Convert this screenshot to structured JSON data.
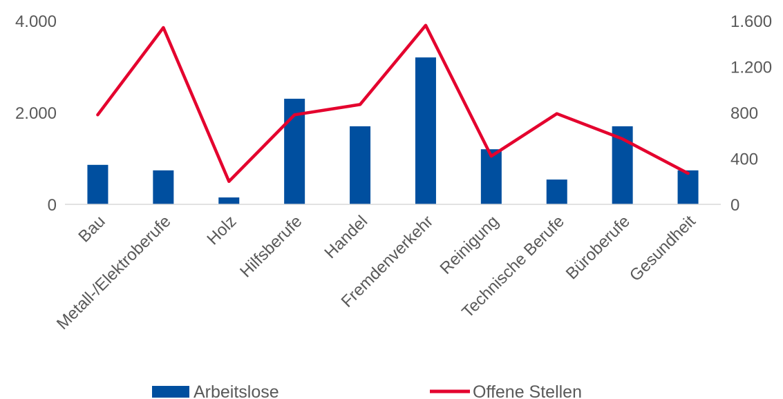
{
  "chart_data": {
    "type": "bar",
    "categories": [
      "Bau",
      "Metall-/Elektroberufe",
      "Holz",
      "Hilfsberufe",
      "Handel",
      "Fremdenverkehr",
      "Reinigung",
      "Technische Berufe",
      "Büroberufe",
      "Gesundheit"
    ],
    "series": [
      {
        "name": "Arbeitslose",
        "type": "bar",
        "axis": "left",
        "color": "#004f9f",
        "values": [
          860,
          740,
          150,
          2300,
          1700,
          3200,
          1200,
          540,
          1700,
          740
        ]
      },
      {
        "name": "Offene Stellen",
        "type": "line",
        "axis": "right",
        "color": "#e4032e",
        "values": [
          780,
          1540,
          200,
          780,
          870,
          1560,
          420,
          790,
          570,
          270
        ]
      }
    ],
    "y_left": {
      "ylim": [
        0,
        4000
      ],
      "ticks": [
        "0",
        "2.000",
        "4.000"
      ],
      "tick_values": [
        0,
        2000,
        4000
      ]
    },
    "y_right": {
      "ylim": [
        0,
        1600
      ],
      "ticks": [
        "0",
        "400",
        "800",
        "1.200",
        "1.600"
      ],
      "tick_values": [
        0,
        400,
        800,
        1200,
        1600
      ]
    },
    "legend_position": "bottom",
    "grid": false
  }
}
